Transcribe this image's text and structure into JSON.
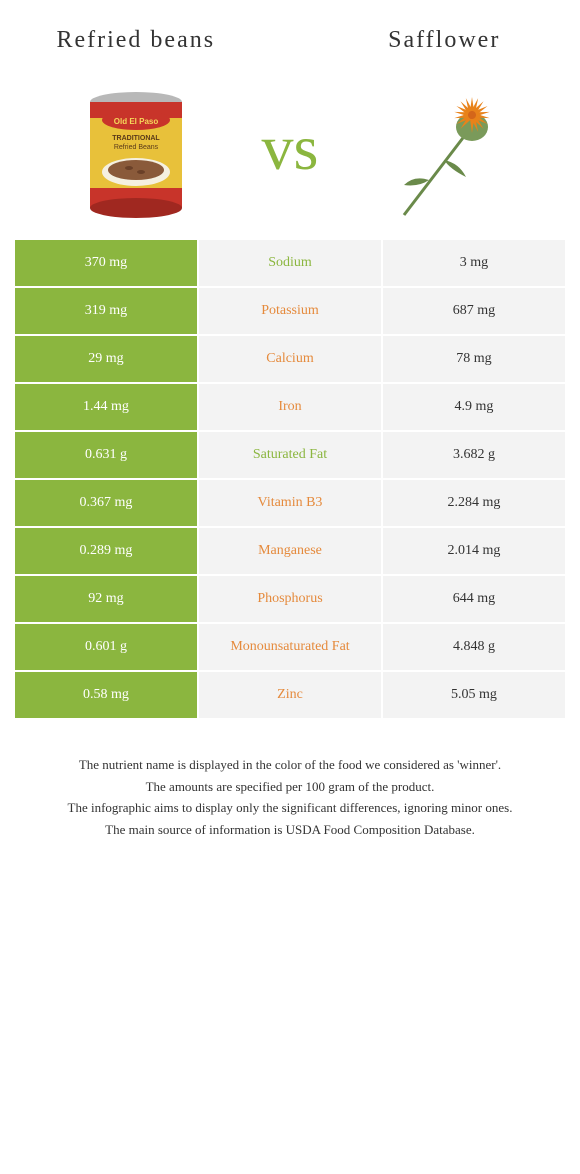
{
  "header": {
    "left_title": "Refried beans",
    "right_title": "Safflower",
    "vs_label": "vs"
  },
  "colors": {
    "green": "#8bb63f",
    "orange": "#e58a3c",
    "left_bg": "#8bb63f",
    "right_bg": "#f3f3f3"
  },
  "rows": [
    {
      "nutrient": "Sodium",
      "left": "370 mg",
      "right": "3 mg",
      "winner": "left"
    },
    {
      "nutrient": "Potassium",
      "left": "319 mg",
      "right": "687 mg",
      "winner": "right"
    },
    {
      "nutrient": "Calcium",
      "left": "29 mg",
      "right": "78 mg",
      "winner": "right"
    },
    {
      "nutrient": "Iron",
      "left": "1.44 mg",
      "right": "4.9 mg",
      "winner": "right"
    },
    {
      "nutrient": "Saturated Fat",
      "left": "0.631 g",
      "right": "3.682 g",
      "winner": "left"
    },
    {
      "nutrient": "Vitamin B3",
      "left": "0.367 mg",
      "right": "2.284 mg",
      "winner": "right"
    },
    {
      "nutrient": "Manganese",
      "left": "0.289 mg",
      "right": "2.014 mg",
      "winner": "right"
    },
    {
      "nutrient": "Phosphorus",
      "left": "92 mg",
      "right": "644 mg",
      "winner": "right"
    },
    {
      "nutrient": "Monounsaturated Fat",
      "left": "0.601 g",
      "right": "4.848 g",
      "winner": "right"
    },
    {
      "nutrient": "Zinc",
      "left": "0.58 mg",
      "right": "5.05 mg",
      "winner": "right"
    }
  ],
  "footer": {
    "line1": "The nutrient name is displayed in the color of the food we considered as 'winner'.",
    "line2": "The amounts are specified per 100 gram of the product.",
    "line3": "The infographic aims to display only the significant differences, ignoring minor ones.",
    "line4": "The main source of information is USDA Food Composition Database."
  }
}
